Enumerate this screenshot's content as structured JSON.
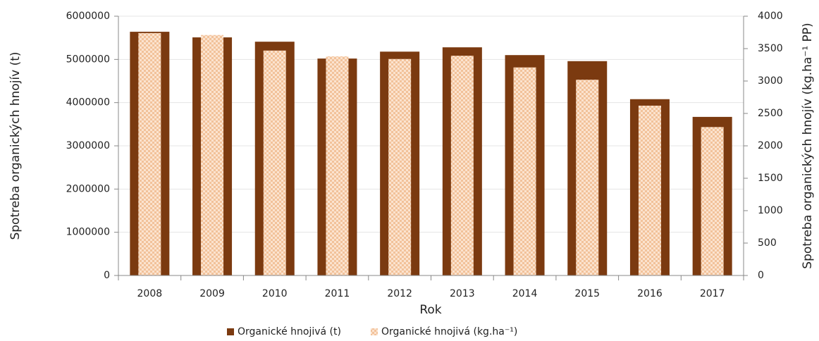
{
  "chart_data": {
    "type": "bar",
    "categories": [
      "2008",
      "2009",
      "2010",
      "2011",
      "2012",
      "2013",
      "2014",
      "2015",
      "2016",
      "2017"
    ],
    "series": [
      {
        "name": "Organické hnojivá (t)",
        "color": "#7b3a10",
        "values": [
          5640000,
          5510000,
          5410000,
          5020000,
          5180000,
          5280000,
          5100000,
          4960000,
          4080000,
          3670000
        ]
      },
      {
        "name": "Organické hnojivá (kg.ha⁻¹)",
        "color": "#f2c29a",
        "axis": "y2",
        "values": [
          3740,
          3710,
          3470,
          3380,
          3340,
          3390,
          3210,
          3020,
          2620,
          2290
        ]
      }
    ],
    "xlabel": "Rok",
    "ylabel": "Spotreba organických hnojív (t)",
    "y2label": "Spotreba organických hnojív (kg.ha⁻¹ PP)",
    "ylim": [
      0,
      6000000
    ],
    "yticks": [
      0,
      1000000,
      2000000,
      3000000,
      4000000,
      5000000,
      6000000
    ],
    "y2lim": [
      0,
      4000
    ],
    "y2ticks": [
      0,
      500,
      1000,
      1500,
      2000,
      2500,
      3000,
      3500,
      4000
    ],
    "grid": true,
    "legend": "bottom"
  }
}
